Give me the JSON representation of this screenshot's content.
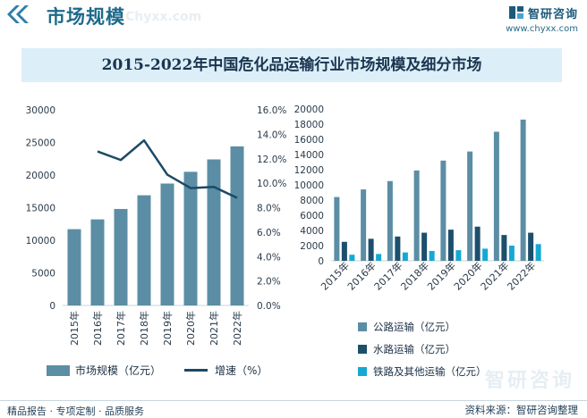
{
  "header": {
    "title": "市场规模",
    "watermark": "Chyxx.com",
    "logo_text": "智研咨询",
    "site": "www.chyxx.com",
    "accent": "#1d6a8a"
  },
  "banner_title": "2015-2022年中国危化品运输行业市场规模及细分市场",
  "bottom_watermark": "智研咨询",
  "chart_data": [
    {
      "type": "bar+line",
      "title": "2015-2022年中国危化品运输行业市场规模及细分市场",
      "categories": [
        "2015年",
        "2016年",
        "2017年",
        "2018年",
        "2019年",
        "2020年",
        "2021年",
        "2022年"
      ],
      "series": [
        {
          "name": "市场规模（亿元）",
          "type": "bar",
          "axis": "left",
          "color": "#5b8ea4",
          "values": [
            11700,
            13200,
            14800,
            16900,
            18700,
            20500,
            22400,
            24400
          ]
        },
        {
          "name": "增速（%）",
          "type": "line",
          "axis": "right",
          "color": "#1b4a66",
          "values": [
            null,
            12.6,
            11.9,
            13.5,
            10.7,
            9.6,
            9.7,
            8.8
          ]
        }
      ],
      "left_axis": {
        "ylim": [
          0,
          30000
        ],
        "ticks": [
          "0",
          "5000",
          "10000",
          "15000",
          "20000",
          "25000",
          "30000"
        ]
      },
      "right_axis": {
        "ylim": [
          0,
          16
        ],
        "ticks": [
          "0.0%",
          "2.0%",
          "4.0%",
          "6.0%",
          "8.0%",
          "10.0%",
          "12.0%",
          "14.0%",
          "16.0%"
        ]
      },
      "legend": [
        "市场规模（亿元）",
        "增速（%）"
      ]
    },
    {
      "type": "bar",
      "categories": [
        "2015年",
        "2016年",
        "2017年",
        "2018年",
        "2019年",
        "2020年",
        "2021年",
        "2022年"
      ],
      "series": [
        {
          "name": "公路运输（亿元）",
          "color": "#5b8ea4",
          "values": [
            8400,
            9400,
            10500,
            11900,
            13200,
            14400,
            17000,
            18600
          ]
        },
        {
          "name": "水路运输（亿元）",
          "color": "#1c4f6c",
          "values": [
            2500,
            2900,
            3200,
            3700,
            4100,
            4500,
            3400,
            3700
          ]
        },
        {
          "name": "铁路及其他运输（亿元）",
          "color": "#16a8d4",
          "values": [
            800,
            900,
            1100,
            1300,
            1400,
            1600,
            2000,
            2200
          ]
        }
      ],
      "ylim": [
        0,
        20000
      ],
      "ticks": [
        "0",
        "2000",
        "4000",
        "6000",
        "8000",
        "10000",
        "12000",
        "14000",
        "16000",
        "18000",
        "20000"
      ],
      "legend": [
        "公路运输（亿元）",
        "水路运输（亿元）",
        "铁路及其他运输（亿元）"
      ]
    }
  ],
  "footer": {
    "left": "精品报告 · 专项定制 · 品质服务",
    "right": "资料来源：智研咨询整理"
  }
}
